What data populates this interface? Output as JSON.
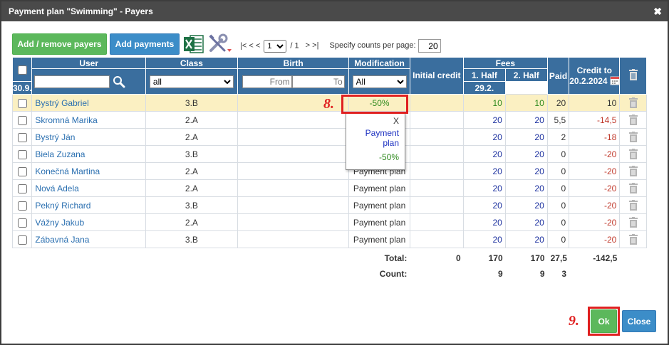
{
  "window": {
    "title": "Payment plan \"Swimming\" - Payers",
    "close_glyph": "✖"
  },
  "toolbar": {
    "add_remove_label": "Add / remove payers",
    "add_payments_label": "Add payments",
    "pager_prefix": "|< < <",
    "page_current": "1",
    "page_total": "/ 1",
    "pager_suffix": "> >|",
    "per_page_label": "Specify counts per page:",
    "per_page_value": "20"
  },
  "columns": {
    "user": "User",
    "class": "Class",
    "birth": "Birth",
    "modification": "Modification",
    "initial_credit": "Initial credit",
    "fees": "Fees",
    "fee1_line1": "1. Half",
    "fee1_line2": "30.9.",
    "fee2_line1": "2. Half",
    "fee2_line2": "29.2.",
    "paid": "Paid",
    "credit_line1": "Credit to",
    "credit_line2": "20.2.2024"
  },
  "filters": {
    "class_value": "all",
    "birth_from_placeholder": "From",
    "birth_to_placeholder": "To",
    "modification_value": "All"
  },
  "rows": [
    {
      "name": "Bystrý Gabriel",
      "class": "3.B",
      "modification": "-50%",
      "fee1": "10",
      "fee2": "10",
      "paid": "20",
      "credit": "10"
    },
    {
      "name": "Skromná Marika",
      "class": "2.A",
      "modification": "",
      "fee1": "20",
      "fee2": "20",
      "paid": "5,5",
      "credit": "-14,5"
    },
    {
      "name": "Bystrý Ján",
      "class": "2.A",
      "modification": "",
      "fee1": "20",
      "fee2": "20",
      "paid": "2",
      "credit": "-18"
    },
    {
      "name": "Biela Zuzana",
      "class": "3.B",
      "modification": "",
      "fee1": "20",
      "fee2": "20",
      "paid": "0",
      "credit": "-20"
    },
    {
      "name": "Konečná Martina",
      "class": "2.A",
      "modification": "Payment plan",
      "fee1": "20",
      "fee2": "20",
      "paid": "0",
      "credit": "-20"
    },
    {
      "name": "Nová Adela",
      "class": "2.A",
      "modification": "Payment plan",
      "fee1": "20",
      "fee2": "20",
      "paid": "0",
      "credit": "-20"
    },
    {
      "name": "Pekný Richard",
      "class": "3.B",
      "modification": "Payment plan",
      "fee1": "20",
      "fee2": "20",
      "paid": "0",
      "credit": "-20"
    },
    {
      "name": "Vážny Jakub",
      "class": "2.A",
      "modification": "Payment plan",
      "fee1": "20",
      "fee2": "20",
      "paid": "0",
      "credit": "-20"
    },
    {
      "name": "Zábavná Jana",
      "class": "3.B",
      "modification": "Payment plan",
      "fee1": "20",
      "fee2": "20",
      "paid": "0",
      "credit": "-20"
    }
  ],
  "totals": {
    "total_label": "Total:",
    "count_label": "Count:",
    "initial": "0",
    "fee1_total": "170",
    "fee2_total": "170",
    "paid_total": "27,5",
    "credit_total": "-142,5",
    "fee1_count": "9",
    "fee2_count": "9",
    "paid_count": "3"
  },
  "dropdown": {
    "option_x": "X",
    "option_plan": "Payment plan",
    "option_discount": "-50%"
  },
  "annotations": {
    "step8": "8.",
    "step9": "9."
  },
  "footer": {
    "ok_label": "Ok",
    "close_label": "Close"
  },
  "colors": {
    "header": "#3a6e9e",
    "highlight_row": "#fbf0c2",
    "ok_green": "#5cb85c",
    "close_blue": "#3c8dc8",
    "marker_red": "#e02020"
  }
}
